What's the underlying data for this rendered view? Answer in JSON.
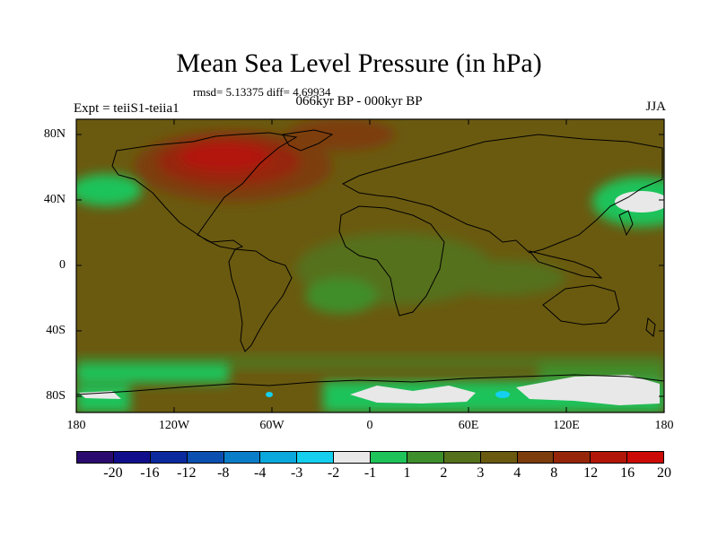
{
  "title": "Mean Sea Level Pressure (in hPa)",
  "stats": "rmsd= 5.13375 diff= 4.69934",
  "subtitle": "066kyr BP - 000kyr BP",
  "left_label": "Expt = teiiS1-teiia1",
  "right_label": "JJA",
  "lat_labels": [
    "80N",
    "40N",
    "0",
    "40S",
    "80S"
  ],
  "lon_labels": [
    "180",
    "120W",
    "60W",
    "0",
    "60E",
    "120E",
    "180"
  ],
  "colorbar": {
    "colors": [
      "#2a0a6e",
      "#110e8c",
      "#0b2a9e",
      "#0b4fb0",
      "#0a7dc8",
      "#0aa8dc",
      "#14d0ee",
      "#e8e8e8",
      "#1ec35a",
      "#3f8e2c",
      "#55711c",
      "#6a5a10",
      "#7d3c0c",
      "#96260a",
      "#b21608",
      "#cc0a06"
    ],
    "labels": [
      "-20",
      "-16",
      "-12",
      "-8",
      "-4",
      "-3",
      "-2",
      "-1",
      "1",
      "2",
      "3",
      "4",
      "8",
      "12",
      "16",
      "20"
    ]
  },
  "colors": {
    "background_field": "#6a5a10",
    "positive_high": "#96260a",
    "negative_low": "#1ec35a",
    "very_low": "#e8e8e8"
  }
}
